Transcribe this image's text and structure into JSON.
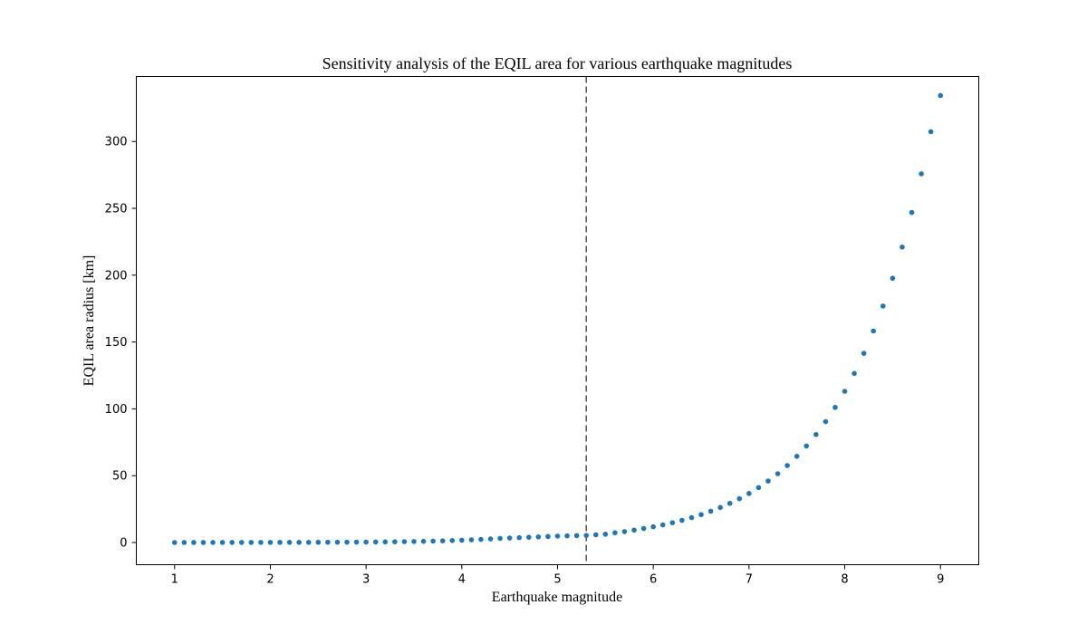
{
  "colors": {
    "points": "#1f77b4",
    "reference_line": "#555555",
    "axes": "#000000"
  },
  "chart_data": {
    "type": "scatter",
    "title": "Sensitivity analysis of the EQIL area for various earthquake magnitudes",
    "xlabel": "Earthquake magnitude",
    "ylabel": "EQIL area radius [km]",
    "xlim": [
      0.6,
      9.4
    ],
    "ylim": [
      -16.6,
      348.6
    ],
    "xticks": [
      1,
      2,
      3,
      4,
      5,
      6,
      7,
      8,
      9
    ],
    "yticks": [
      0,
      50,
      100,
      150,
      200,
      250,
      300
    ],
    "grid": false,
    "legend": "none",
    "reference_line": {
      "orientation": "vertical",
      "x": 5.3,
      "style": "dashed"
    },
    "series": [
      {
        "x": [
          1.0,
          1.1,
          1.2,
          1.3,
          1.4,
          1.5,
          1.6,
          1.7,
          1.8,
          1.9,
          2.0,
          2.1,
          2.2,
          2.3,
          2.4,
          2.5,
          2.6,
          2.7,
          2.8,
          2.9,
          3.0,
          3.1,
          3.2,
          3.3,
          3.4,
          3.5,
          3.6,
          3.7,
          3.8,
          3.9,
          4.0,
          4.1,
          4.2,
          4.3,
          4.4,
          4.5,
          4.6,
          4.7,
          4.8,
          4.9,
          5.0,
          5.1,
          5.2,
          5.3,
          5.4,
          5.5,
          5.6,
          5.7,
          5.8,
          5.9,
          6.0,
          6.1,
          6.2,
          6.3,
          6.4,
          6.5,
          6.6,
          6.7,
          6.8,
          6.9,
          7.0,
          7.1,
          7.2,
          7.3,
          7.4,
          7.5,
          7.6,
          7.7,
          7.8,
          7.9,
          8.0,
          8.1,
          8.2,
          8.3,
          8.4,
          8.5,
          8.6,
          8.7,
          8.8,
          8.9,
          9.0
        ],
        "y": [
          0.0,
          0.01,
          0.01,
          0.02,
          0.03,
          0.04,
          0.05,
          0.06,
          0.07,
          0.08,
          0.09,
          0.1,
          0.12,
          0.14,
          0.16,
          0.18,
          0.2,
          0.23,
          0.26,
          0.3,
          0.34,
          0.4,
          0.46,
          0.54,
          0.64,
          0.76,
          0.9,
          1.06,
          1.25,
          1.47,
          1.72,
          2.0,
          2.32,
          2.68,
          3.1,
          3.36,
          3.65,
          3.95,
          4.22,
          4.5,
          4.8,
          5.0,
          5.15,
          5.3,
          5.8,
          6.2,
          7.3,
          8.2,
          9.3,
          10.5,
          11.8,
          13.2,
          14.8,
          16.6,
          18.6,
          20.9,
          23.4,
          26.2,
          29.3,
          32.8,
          36.7,
          41.1,
          46.0,
          51.5,
          57.6,
          64.5,
          72.2,
          80.8,
          90.4,
          101.1,
          113.1,
          126.5,
          141.5,
          158.2,
          176.9,
          197.7,
          221.0,
          246.9,
          275.8,
          307.3,
          334.4
        ]
      }
    ]
  }
}
